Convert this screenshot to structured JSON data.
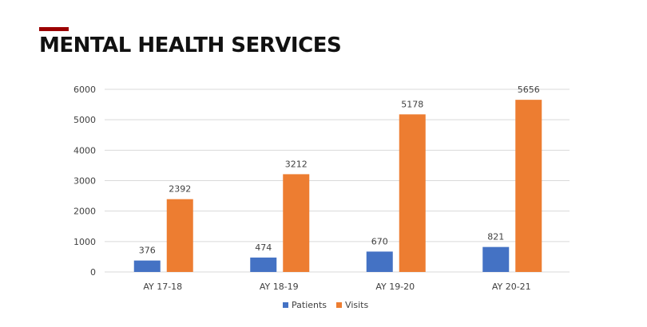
{
  "header": {
    "title": "MENTAL HEALTH SERVICES"
  },
  "chart_data": {
    "type": "bar",
    "title": "",
    "xlabel": "",
    "ylabel": "",
    "categories": [
      "AY 17-18",
      "AY 18-19",
      "AY 19-20",
      "AY 20-21"
    ],
    "series": [
      {
        "name": "Patients",
        "values": [
          376,
          474,
          670,
          821
        ],
        "color": "#4472c4"
      },
      {
        "name": "Visits",
        "values": [
          2392,
          3212,
          5178,
          5656
        ],
        "color": "#ed7d31"
      }
    ],
    "ylim": [
      0,
      6000
    ],
    "yticks": [
      0,
      1000,
      2000,
      3000,
      4000,
      5000,
      6000
    ],
    "grid": true,
    "data_labels": true,
    "legend": "bottom"
  }
}
